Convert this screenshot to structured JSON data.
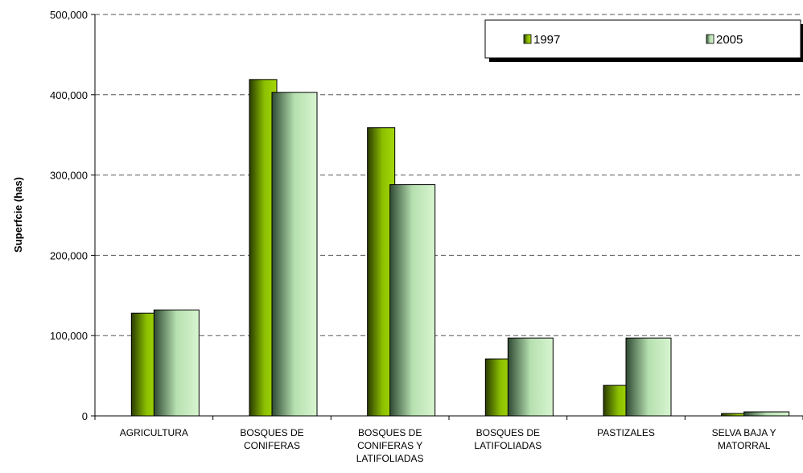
{
  "chart_data": {
    "type": "bar",
    "title": "",
    "xlabel": "",
    "ylabel": "Superfcie (has)",
    "ylim": [
      0,
      500000
    ],
    "yticks": [
      "0",
      "100,000",
      "200,000",
      "300,000",
      "400,000",
      "500,000"
    ],
    "grid": true,
    "legend_position": "top-right",
    "categories": [
      [
        "AGRICULTURA"
      ],
      [
        "BOSQUES DE",
        "CONIFERAS"
      ],
      [
        "BOSQUES DE",
        "CONIFERAS Y",
        "LATIFOLIADAS"
      ],
      [
        "BOSQUES DE",
        "LATIFOLIADAS"
      ],
      [
        "PASTIZALES"
      ],
      [
        "SELVA BAJA Y",
        "MATORRAL"
      ]
    ],
    "series": [
      {
        "name": "1997",
        "values": [
          128000,
          419000,
          359000,
          71000,
          38000,
          3000
        ],
        "color": "#8cc000"
      },
      {
        "name": "2005",
        "values": [
          132000,
          403000,
          288000,
          97000,
          97000,
          5000
        ],
        "color": "#c8ecc0"
      }
    ]
  }
}
